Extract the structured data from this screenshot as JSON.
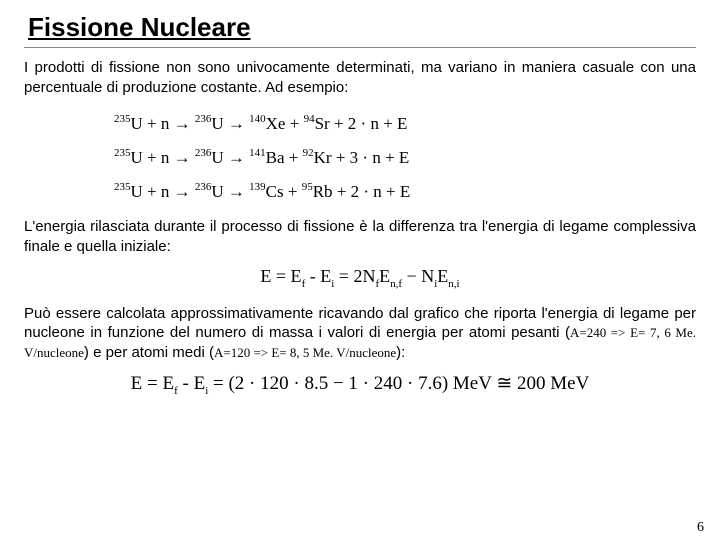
{
  "title": "Fissione Nucleare",
  "para1": "I prodotti di fissione non sono univocamente determinati, ma variano in maniera casuale con una percentuale di produzione costante. Ad esempio:",
  "equations": {
    "row1": {
      "lhsA": "235",
      "lhsB": "236",
      "p1A": "140",
      "p1": "Xe",
      "p2A": "94",
      "p2": "Sr",
      "tail": " + 2 · n + E"
    },
    "row2": {
      "lhsA": "235",
      "lhsB": "236",
      "p1A": "141",
      "p1": "Ba",
      "p2A": "92",
      "p2": "Kr",
      "tail": " + 3 · n + E"
    },
    "row3": {
      "lhsA": "235",
      "lhsB": "236",
      "p1A": "139",
      "p1": "Cs",
      "p2A": "95",
      "p2": "Rb",
      "tail": " + 2 · n + E"
    }
  },
  "para2": "L'energia rilasciata durante il processo di fissione è la differenza tra l'energia di legame complessiva finale e quella iniziale:",
  "centerEq": {
    "lhs": "E = E",
    "sub1": "f",
    "mid1": " - E",
    "sub2": "i",
    "mid2": " = 2N",
    "sub3": "f",
    "mid3": "E",
    "sub4": "n,f",
    "mid4": " − N",
    "sub5": "i",
    "mid5": "E",
    "sub6": "n,i"
  },
  "para3_a": "Può essere calcolata approssimativamente ricavando dal grafico che riporta l'energia di legame per nucleone in funzione del numero di massa i valori di energia per atomi pesanti (",
  "para3_ins1": "A=240 => E= 7, 6 Me. V/nucleone",
  "para3_b": ") e per atomi medi (",
  "para3_ins2": "A=120 => E= 8, 5 Me. V/nucleone",
  "para3_c": "):",
  "finalEq": {
    "lhs": "E = E",
    "sub1": "f",
    "mid1": " - E",
    "sub2": "i",
    "mid2": " = (2 · 120 · 8.5 − 1 · 240 · 7.6) MeV ≅ 200 MeV"
  },
  "pageNum": "6"
}
